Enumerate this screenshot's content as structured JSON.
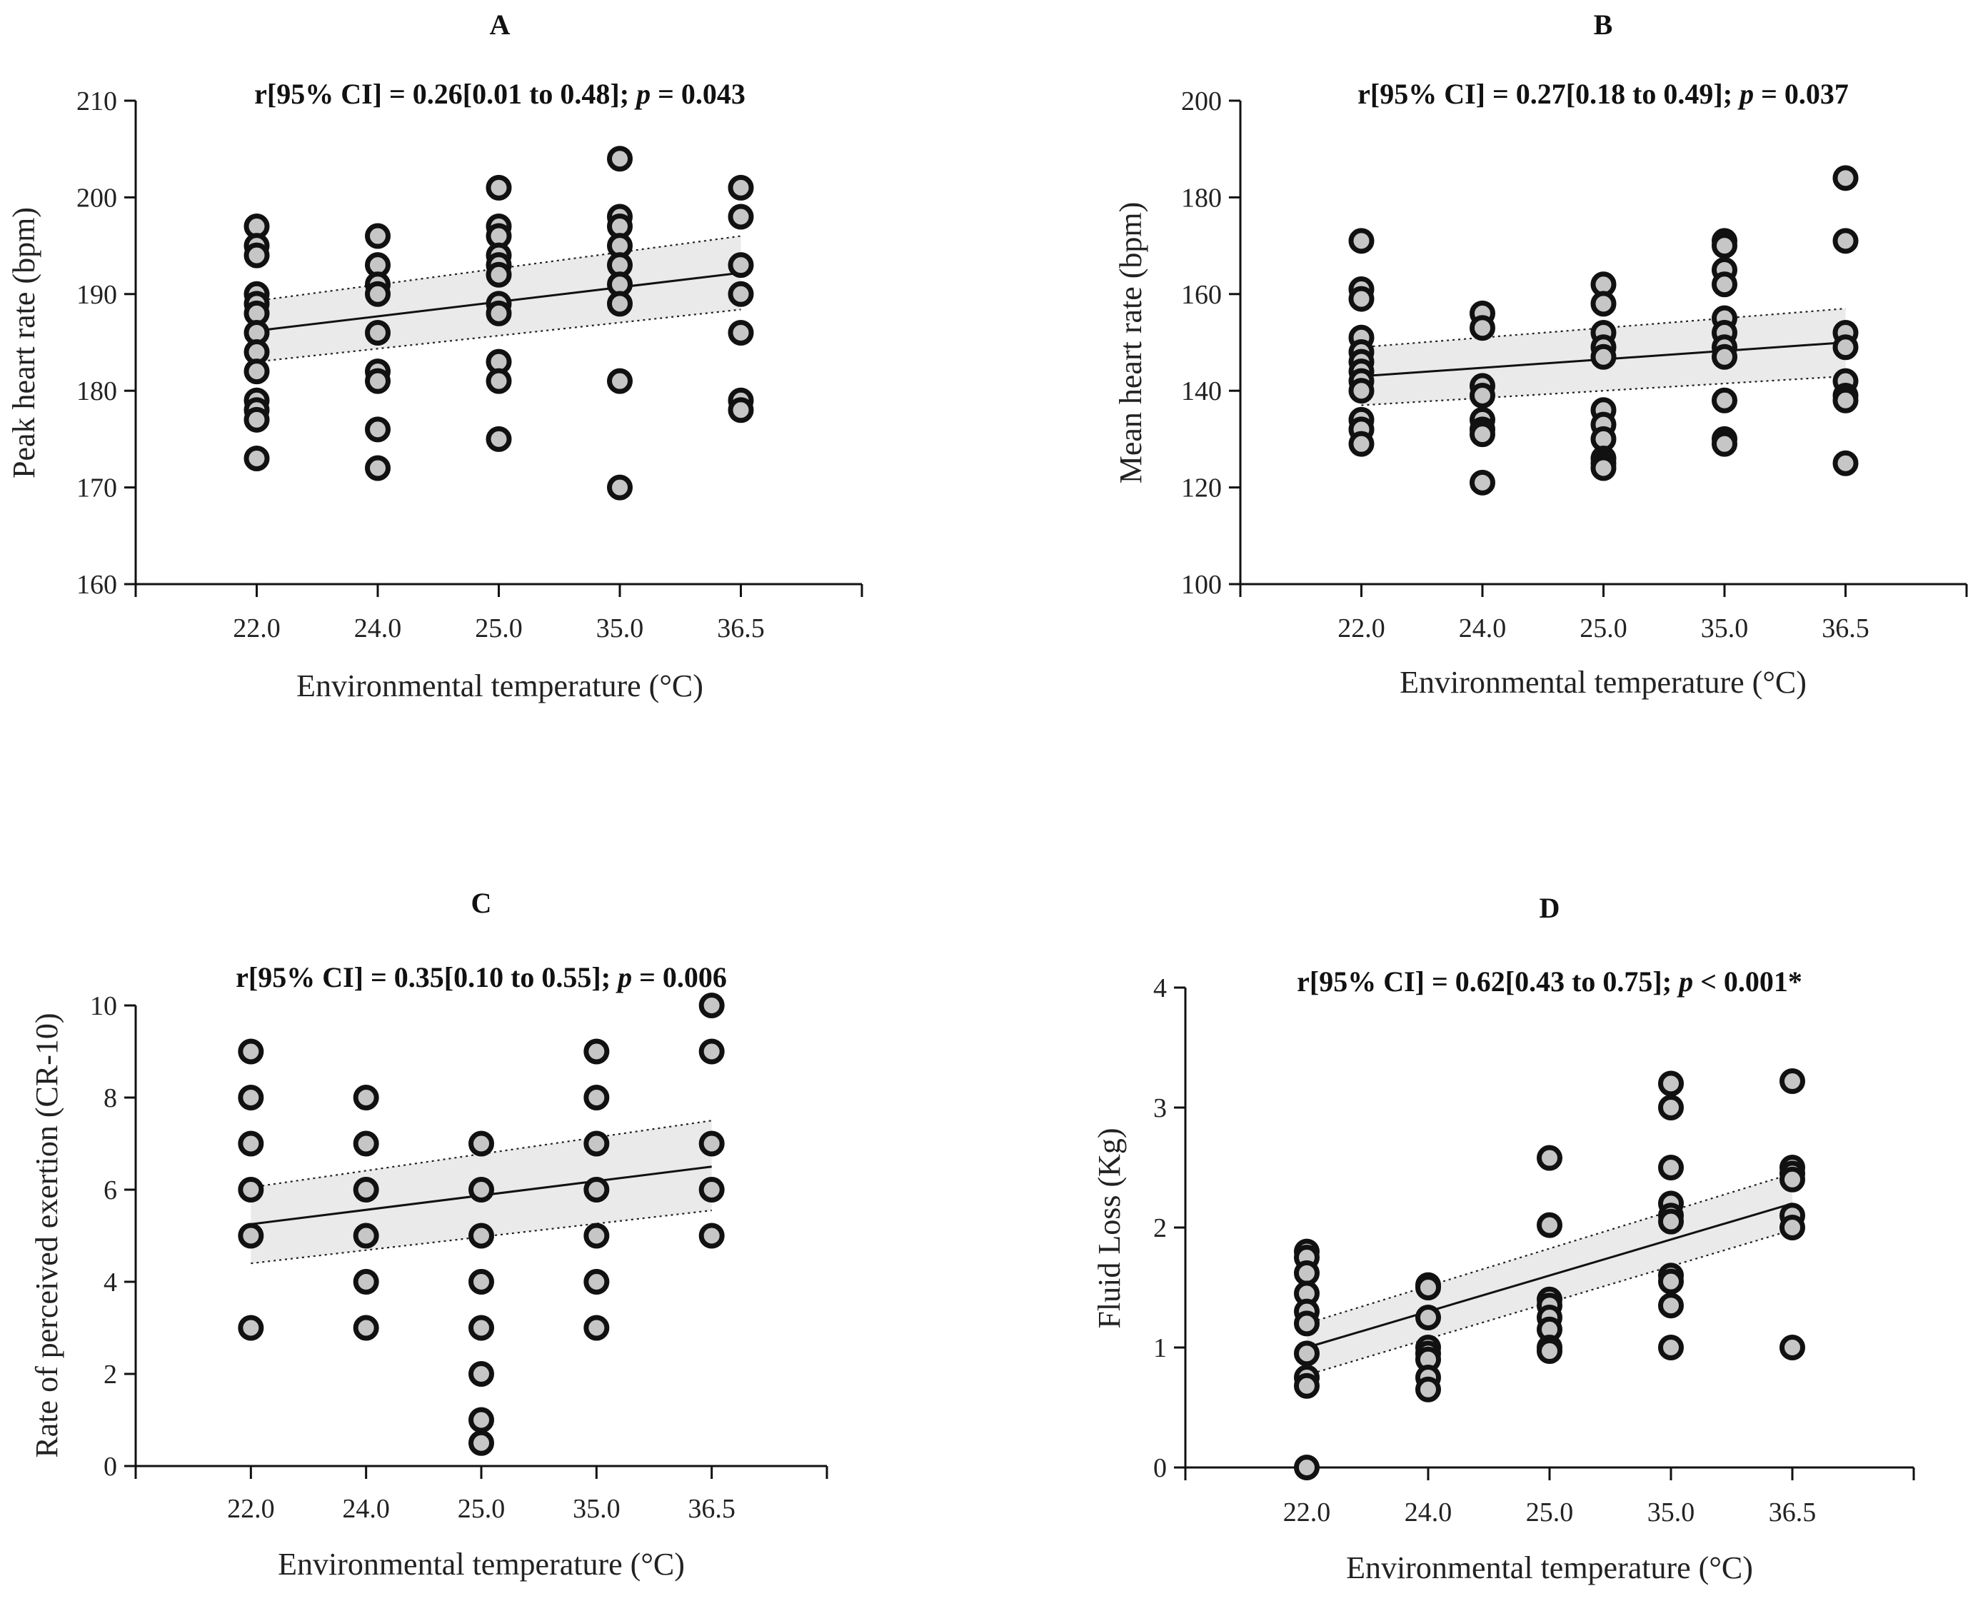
{
  "chart_data": [
    {
      "panel": "A",
      "type": "scatter",
      "stat": {
        "prefix": "r[95% CI] = 0.26[0.01 to 0.48]; ",
        "p_symbol": "p",
        "suffix": " = 0.043"
      },
      "xlabel": "Environmental temperature (°C)",
      "ylabel": "Peak heart rate (bpm)",
      "categories": [
        "22.0",
        "24.0",
        "25.0",
        "35.0",
        "36.5"
      ],
      "ylim": [
        160,
        210
      ],
      "yticks": [
        160,
        170,
        180,
        190,
        200,
        210
      ],
      "fit": {
        "y_start": 186.2,
        "y_end": 192.2,
        "ci_upper": [
          189.3,
          196.0
        ],
        "ci_lower": [
          183.0,
          188.4
        ]
      },
      "points": [
        [
          0,
          197
        ],
        [
          0,
          195
        ],
        [
          0,
          194
        ],
        [
          0,
          190
        ],
        [
          0,
          189
        ],
        [
          0,
          188
        ],
        [
          0,
          186
        ],
        [
          0,
          184
        ],
        [
          0,
          182
        ],
        [
          0,
          179
        ],
        [
          0,
          178
        ],
        [
          0,
          177
        ],
        [
          0,
          173
        ],
        [
          1,
          196
        ],
        [
          1,
          193
        ],
        [
          1,
          191
        ],
        [
          1,
          190
        ],
        [
          1,
          186
        ],
        [
          1,
          182
        ],
        [
          1,
          181
        ],
        [
          1,
          176
        ],
        [
          1,
          172
        ],
        [
          2,
          201
        ],
        [
          2,
          197
        ],
        [
          2,
          196
        ],
        [
          2,
          194
        ],
        [
          2,
          193
        ],
        [
          2,
          192
        ],
        [
          2,
          189
        ],
        [
          2,
          188
        ],
        [
          2,
          183
        ],
        [
          2,
          181
        ],
        [
          2,
          175
        ],
        [
          3,
          204
        ],
        [
          3,
          198
        ],
        [
          3,
          197
        ],
        [
          3,
          195
        ],
        [
          3,
          193
        ],
        [
          3,
          191
        ],
        [
          3,
          189
        ],
        [
          3,
          181
        ],
        [
          3,
          170
        ],
        [
          4,
          201
        ],
        [
          4,
          198
        ],
        [
          4,
          193
        ],
        [
          4,
          190
        ],
        [
          4,
          186
        ],
        [
          4,
          179
        ],
        [
          4,
          178
        ]
      ]
    },
    {
      "panel": "B",
      "type": "scatter",
      "stat": {
        "prefix": "r[95% CI] = 0.27[0.18 to 0.49]; ",
        "p_symbol": "p",
        "suffix": " = 0.037"
      },
      "xlabel": "Environmental temperature (°C)",
      "ylabel": "Mean heart rate  (bpm)",
      "categories": [
        "22.0",
        "24.0",
        "25.0",
        "35.0",
        "36.5"
      ],
      "ylim": [
        100,
        200
      ],
      "yticks": [
        100,
        120,
        140,
        160,
        180,
        200
      ],
      "fit": {
        "y_start": 143.0,
        "y_end": 150.0,
        "ci_upper": [
          149.0,
          157.0
        ],
        "ci_lower": [
          137.0,
          143.0
        ]
      },
      "points": [
        [
          0,
          171
        ],
        [
          0,
          161
        ],
        [
          0,
          159
        ],
        [
          0,
          151
        ],
        [
          0,
          148
        ],
        [
          0,
          146
        ],
        [
          0,
          144
        ],
        [
          0,
          142
        ],
        [
          0,
          140
        ],
        [
          0,
          134
        ],
        [
          0,
          132
        ],
        [
          0,
          129
        ],
        [
          1,
          156
        ],
        [
          1,
          153
        ],
        [
          1,
          141
        ],
        [
          1,
          139
        ],
        [
          1,
          134
        ],
        [
          1,
          132
        ],
        [
          1,
          131
        ],
        [
          1,
          121
        ],
        [
          2,
          162
        ],
        [
          2,
          158
        ],
        [
          2,
          152
        ],
        [
          2,
          149
        ],
        [
          2,
          147
        ],
        [
          2,
          136
        ],
        [
          2,
          133
        ],
        [
          2,
          130
        ],
        [
          2,
          126
        ],
        [
          2,
          125
        ],
        [
          2,
          124
        ],
        [
          3,
          171
        ],
        [
          3,
          170
        ],
        [
          3,
          165
        ],
        [
          3,
          162
        ],
        [
          3,
          155
        ],
        [
          3,
          152
        ],
        [
          3,
          149
        ],
        [
          3,
          147
        ],
        [
          3,
          138
        ],
        [
          3,
          130
        ],
        [
          3,
          129
        ],
        [
          4,
          184
        ],
        [
          4,
          171
        ],
        [
          4,
          152
        ],
        [
          4,
          149
        ],
        [
          4,
          142
        ],
        [
          4,
          139
        ],
        [
          4,
          138
        ],
        [
          4,
          125
        ]
      ]
    },
    {
      "panel": "C",
      "type": "scatter",
      "stat": {
        "prefix": "r[95% CI] = 0.35[0.10 to 0.55]; ",
        "p_symbol": "p",
        "suffix": " = 0.006"
      },
      "xlabel": "Environmental temperature (°C)",
      "ylabel": "Rate of perceived exertion (CR-10)",
      "categories": [
        "22.0",
        "24.0",
        "25.0",
        "35.0",
        "36.5"
      ],
      "ylim": [
        0,
        10
      ],
      "yticks": [
        0,
        2,
        4,
        6,
        8,
        10
      ],
      "fit": {
        "y_start": 5.25,
        "y_end": 6.5,
        "ci_upper": [
          6.05,
          7.5
        ],
        "ci_lower": [
          4.4,
          5.55
        ]
      },
      "points": [
        [
          0,
          9
        ],
        [
          0,
          8
        ],
        [
          0,
          7
        ],
        [
          0,
          6
        ],
        [
          0,
          5
        ],
        [
          0,
          3
        ],
        [
          1,
          8
        ],
        [
          1,
          7
        ],
        [
          1,
          6
        ],
        [
          1,
          5
        ],
        [
          1,
          4
        ],
        [
          1,
          3
        ],
        [
          2,
          7
        ],
        [
          2,
          6
        ],
        [
          2,
          5
        ],
        [
          2,
          4
        ],
        [
          2,
          3
        ],
        [
          2,
          2
        ],
        [
          2,
          1
        ],
        [
          2,
          0.5
        ],
        [
          3,
          9
        ],
        [
          3,
          8
        ],
        [
          3,
          7
        ],
        [
          3,
          6
        ],
        [
          3,
          5
        ],
        [
          3,
          4
        ],
        [
          3,
          3
        ],
        [
          4,
          10
        ],
        [
          4,
          9
        ],
        [
          4,
          7
        ],
        [
          4,
          6
        ],
        [
          4,
          5
        ]
      ]
    },
    {
      "panel": "D",
      "type": "scatter",
      "stat": {
        "prefix": "r[95% CI] = 0.62[0.43 to 0.75]; ",
        "p_symbol": "p",
        "suffix": " < 0.001*"
      },
      "xlabel": "Environmental temperature (°C)",
      "ylabel": "Fluid Loss (Kg)",
      "categories": [
        "22.0",
        "24.0",
        "25.0",
        "35.0",
        "36.5"
      ],
      "ylim": [
        0,
        4
      ],
      "yticks": [
        0,
        1,
        2,
        3,
        4
      ],
      "fit": {
        "y_start": 1.0,
        "y_end": 2.2,
        "ci_upper": [
          1.2,
          2.45
        ],
        "ci_lower": [
          0.77,
          1.98
        ]
      },
      "points": [
        [
          0,
          1.8
        ],
        [
          0,
          1.75
        ],
        [
          0,
          1.62
        ],
        [
          0,
          1.45
        ],
        [
          0,
          1.3
        ],
        [
          0,
          1.2
        ],
        [
          0,
          0.95
        ],
        [
          0,
          0.75
        ],
        [
          0,
          0.68
        ],
        [
          0,
          0.0
        ],
        [
          1,
          1.52
        ],
        [
          1,
          1.5
        ],
        [
          1,
          1.25
        ],
        [
          1,
          1.0
        ],
        [
          1,
          0.95
        ],
        [
          1,
          0.9
        ],
        [
          1,
          0.75
        ],
        [
          1,
          0.65
        ],
        [
          2,
          2.58
        ],
        [
          2,
          2.02
        ],
        [
          2,
          1.4
        ],
        [
          2,
          1.35
        ],
        [
          2,
          1.25
        ],
        [
          2,
          1.15
        ],
        [
          2,
          1.0
        ],
        [
          2,
          0.97
        ],
        [
          3,
          3.2
        ],
        [
          3,
          3.0
        ],
        [
          3,
          2.5
        ],
        [
          3,
          2.2
        ],
        [
          3,
          2.1
        ],
        [
          3,
          2.05
        ],
        [
          3,
          1.6
        ],
        [
          3,
          1.55
        ],
        [
          3,
          1.35
        ],
        [
          3,
          1.0
        ],
        [
          4,
          3.22
        ],
        [
          4,
          2.5
        ],
        [
          4,
          2.45
        ],
        [
          4,
          2.4
        ],
        [
          4,
          2.1
        ],
        [
          4,
          2.0
        ],
        [
          4,
          1.0
        ]
      ]
    }
  ]
}
